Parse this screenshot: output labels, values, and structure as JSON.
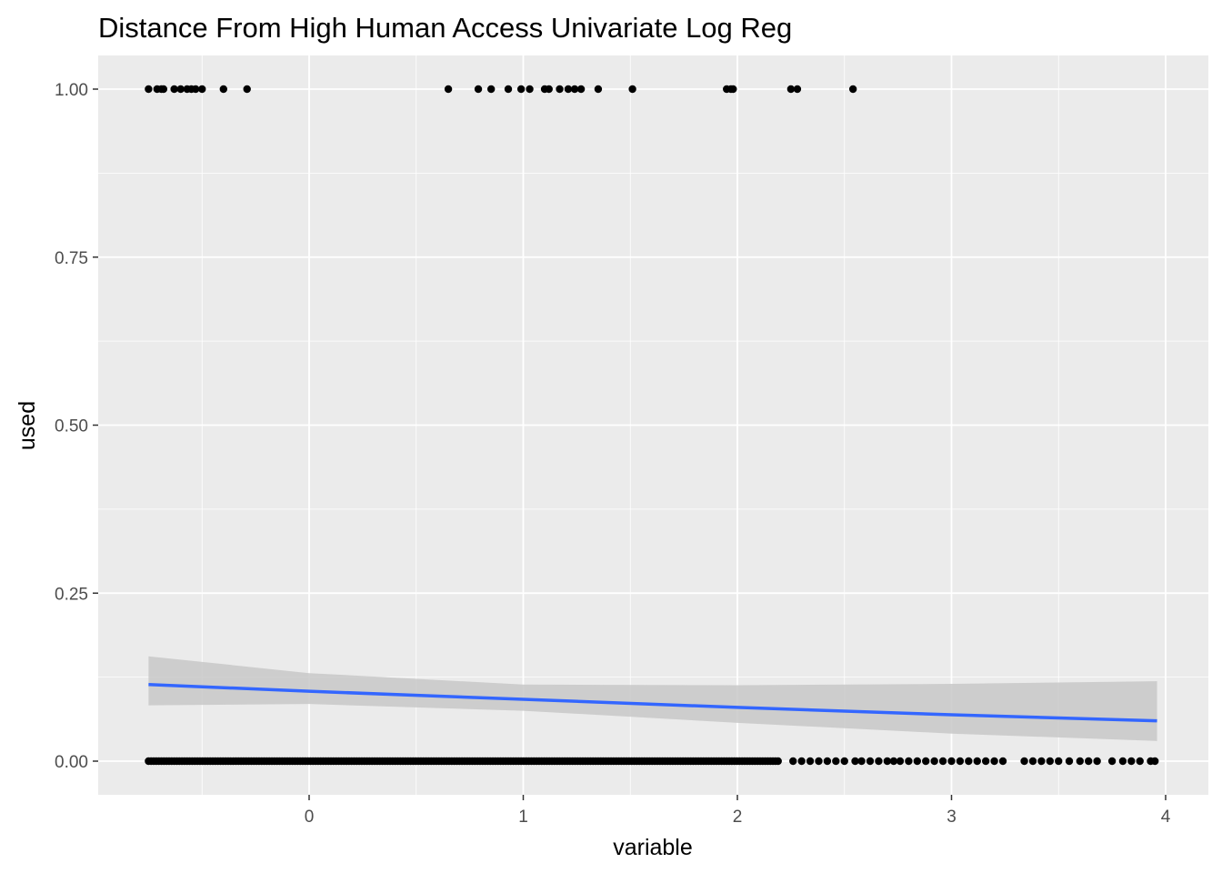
{
  "chart_data": {
    "type": "scatter",
    "title": "Distance From High Human Access Univariate Log Reg",
    "xlabel": "variable",
    "ylabel": "used",
    "xlim": [
      -0.75,
      3.96
    ],
    "ylim": [
      0,
      1
    ],
    "x_ticks": [
      "0",
      "1",
      "2",
      "3",
      "4"
    ],
    "y_ticks": [
      "0.00",
      "0.25",
      "0.50",
      "0.75",
      "1.00"
    ],
    "grid": true,
    "legend": "none",
    "colors": {
      "panel_background": "#ebebeb",
      "grid_major": "#ffffff",
      "points": "#000000",
      "fit_line": "#3366ff",
      "confidence_band": "#c8c8c8"
    },
    "used_points_x": [
      -0.75,
      -0.71,
      -0.69,
      -0.68,
      -0.63,
      -0.6,
      -0.57,
      -0.55,
      -0.53,
      -0.5,
      -0.4,
      -0.29,
      0.65,
      0.79,
      0.85,
      0.93,
      0.99,
      1.03,
      1.1,
      1.12,
      1.17,
      1.21,
      1.24,
      1.27,
      1.35,
      1.51,
      1.95,
      1.97,
      1.98,
      2.25,
      2.28,
      2.54
    ],
    "unused_points_x_dense_range": [
      -0.75,
      2.2
    ],
    "unused_points_x_sparse": [
      2.26,
      2.3,
      2.34,
      2.38,
      2.42,
      2.46,
      2.5,
      2.55,
      2.58,
      2.62,
      2.66,
      2.7,
      2.73,
      2.76,
      2.8,
      2.84,
      2.88,
      2.92,
      2.96,
      3.0,
      3.04,
      3.08,
      3.12,
      3.16,
      3.2,
      3.24,
      3.34,
      3.38,
      3.42,
      3.46,
      3.5,
      3.55,
      3.6,
      3.64,
      3.68,
      3.75,
      3.8,
      3.84,
      3.88,
      3.93,
      3.95
    ],
    "logistic_fit": {
      "x": [
        -0.75,
        0,
        1,
        2,
        3,
        3.96
      ],
      "y": [
        0.114,
        0.104,
        0.092,
        0.08,
        0.069,
        0.06
      ],
      "ci_lower": [
        0.083,
        0.085,
        0.075,
        0.057,
        0.041,
        0.03
      ],
      "ci_upper": [
        0.156,
        0.131,
        0.114,
        0.113,
        0.115,
        0.119
      ]
    }
  }
}
